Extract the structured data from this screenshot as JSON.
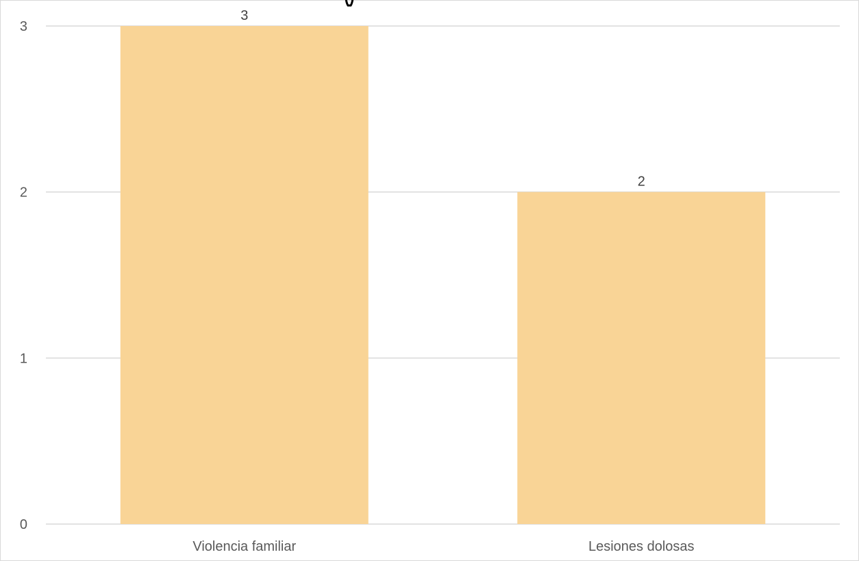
{
  "chart_data": {
    "type": "bar",
    "title": "",
    "xlabel": "",
    "ylabel": "",
    "categories": [
      "Violencia familiar",
      "Lesiones dolosas"
    ],
    "values": [
      3,
      2
    ],
    "data_labels": [
      "3",
      "2"
    ],
    "y_ticks": [
      "0",
      "1",
      "2",
      "3"
    ],
    "ylim": [
      0,
      3
    ],
    "grid": true,
    "legend": "none",
    "bar_color": "#f9d496",
    "gridline_color": "#d9d9d9",
    "label_color": "#595959"
  }
}
